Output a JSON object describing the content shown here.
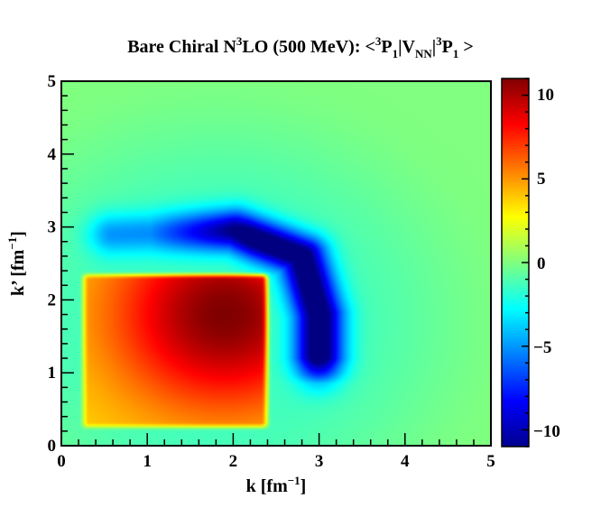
{
  "chart_data": {
    "type": "heatmap",
    "title": {
      "pre": "Bare Chiral N",
      "sup1": "3",
      "mid1": "LO (500 MeV): <",
      "sup2": "3",
      "mid2": "P",
      "sub1": "1",
      "mid3": "|V",
      "sub2": "NN",
      "mid4": "|",
      "sup3": "3",
      "mid5": "P",
      "sub3": "1",
      "post": " >"
    },
    "xlabel": {
      "pre": "k [fm",
      "sup": "−1",
      "post": "]"
    },
    "ylabel": {
      "pre": "k’ [fm",
      "sup": "−1",
      "post": "]"
    },
    "xlim": [
      0,
      5
    ],
    "ylim": [
      0,
      5
    ],
    "x_ticks": [
      "0",
      "1",
      "2",
      "3",
      "4",
      "5"
    ],
    "y_ticks": [
      "0",
      "1",
      "2",
      "3",
      "4",
      "5"
    ],
    "colorbar": {
      "range": [
        -11,
        11
      ],
      "ticks": [
        "10",
        "5",
        "0",
        "−5",
        "−10"
      ],
      "tick_values": [
        10,
        5,
        0,
        -5,
        -10
      ],
      "colormap": "jet"
    },
    "grid": false,
    "features": [
      {
        "kind": "positive-lobe",
        "k_range": [
          0.2,
          2.45
        ],
        "kprime_range": [
          0.2,
          2.4
        ],
        "peak": {
          "k": 1.9,
          "kprime": 1.8,
          "value": 11
        }
      },
      {
        "kind": "negative-band",
        "path": [
          [
            0.6,
            2.9
          ],
          [
            2.0,
            2.95
          ],
          [
            2.8,
            2.6
          ],
          [
            3.0,
            1.8
          ],
          [
            3.0,
            1.0
          ]
        ],
        "peak_value": -11
      },
      {
        "kind": "negative-halo",
        "value": -1.5
      }
    ]
  }
}
